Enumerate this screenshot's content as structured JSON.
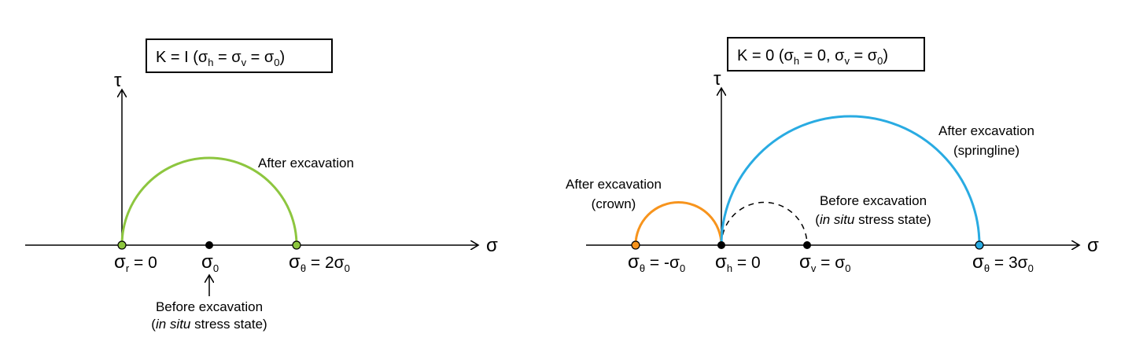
{
  "colors": {
    "green": "#8dc63f",
    "orange": "#f7941d",
    "blue": "#29abe2",
    "black": "#000000"
  },
  "symbols": {
    "tau": "τ",
    "sigma": "σ"
  },
  "panel_left": {
    "title": "K = 1 (σh = σv = σ0)",
    "title_parts": {
      "lead": "K = I (",
      "s1": "σ",
      "s1_sub": "h",
      "eq1": " = ",
      "s2": "σ",
      "s2_sub": "v",
      "eq2": " = ",
      "s3": "σ",
      "s3_sub": "0",
      "tail": ")"
    },
    "curve_label": "After excavation",
    "ticks": [
      {
        "sym": "σ",
        "sub": "r",
        "rest": " = 0"
      },
      {
        "sym": "σ",
        "sub": "0",
        "rest": ""
      },
      {
        "sym": "σ",
        "sub": "θ",
        "rest": " = 2σ",
        "tail_sub": "0"
      }
    ],
    "before_label_line1": "Before excavation",
    "before_label_italic": "in situ",
    "before_label_rest": " stress state)",
    "before_label_open": "("
  },
  "panel_right": {
    "title_parts": {
      "lead": "K = 0 (",
      "s1": "σ",
      "s1_sub": "h",
      "eq1": " = 0, ",
      "s2": "σ",
      "s2_sub": "v",
      "eq2": " = ",
      "s3": "σ",
      "s3_sub": "0",
      "tail": ")"
    },
    "crown_label_line1": "After excavation",
    "crown_label_line2": "(crown)",
    "springline_label_line1": "After excavation",
    "springline_label_line2": "(springline)",
    "before_label_line1": "Before excavation",
    "before_label_open": "(",
    "before_label_italic": "in situ",
    "before_label_rest": " stress state)",
    "ticks": [
      {
        "sym": "σ",
        "sub": "θ",
        "rest": " = -σ",
        "tail_sub": "0"
      },
      {
        "sym": "σ",
        "sub": "h",
        "rest": " = 0"
      },
      {
        "sym": "σ",
        "sub": "v",
        "rest": " = σ",
        "tail_sub": "0"
      },
      {
        "sym": "σ",
        "sub": "θ",
        "rest": " = 3σ",
        "tail_sub": "0"
      }
    ]
  }
}
